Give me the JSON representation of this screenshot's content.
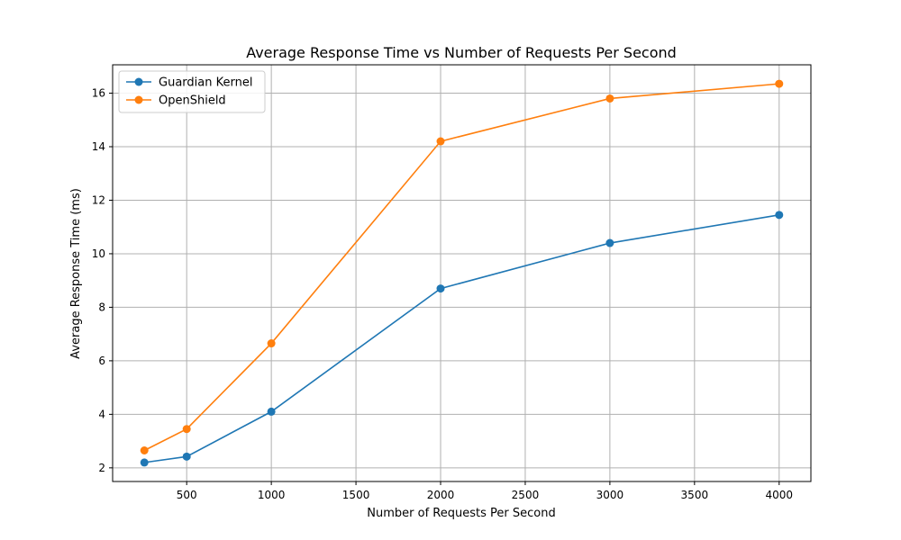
{
  "chart_data": {
    "type": "line",
    "title": "Average Response Time vs Number of Requests Per Second",
    "xlabel": "Number of Requests Per Second",
    "ylabel": "Average Response Time (ms)",
    "x": [
      250,
      500,
      1000,
      2000,
      3000,
      4000
    ],
    "xlim": [
      62.5,
      4187.5
    ],
    "ylim": [
      1.49,
      17.06
    ],
    "xticks": [
      500,
      1000,
      1500,
      2000,
      2500,
      3000,
      3500,
      4000
    ],
    "yticks": [
      2,
      4,
      6,
      8,
      10,
      12,
      14,
      16
    ],
    "grid": true,
    "legend_position": "top-left",
    "series": [
      {
        "name": "Guardian Kernel",
        "color": "#1f77b4",
        "marker": "circle",
        "values": [
          2.2,
          2.42,
          4.1,
          8.7,
          10.4,
          11.45
        ]
      },
      {
        "name": "OpenShield",
        "color": "#ff7f0e",
        "marker": "circle",
        "values": [
          2.65,
          3.45,
          6.65,
          14.2,
          15.8,
          16.35
        ]
      }
    ]
  }
}
